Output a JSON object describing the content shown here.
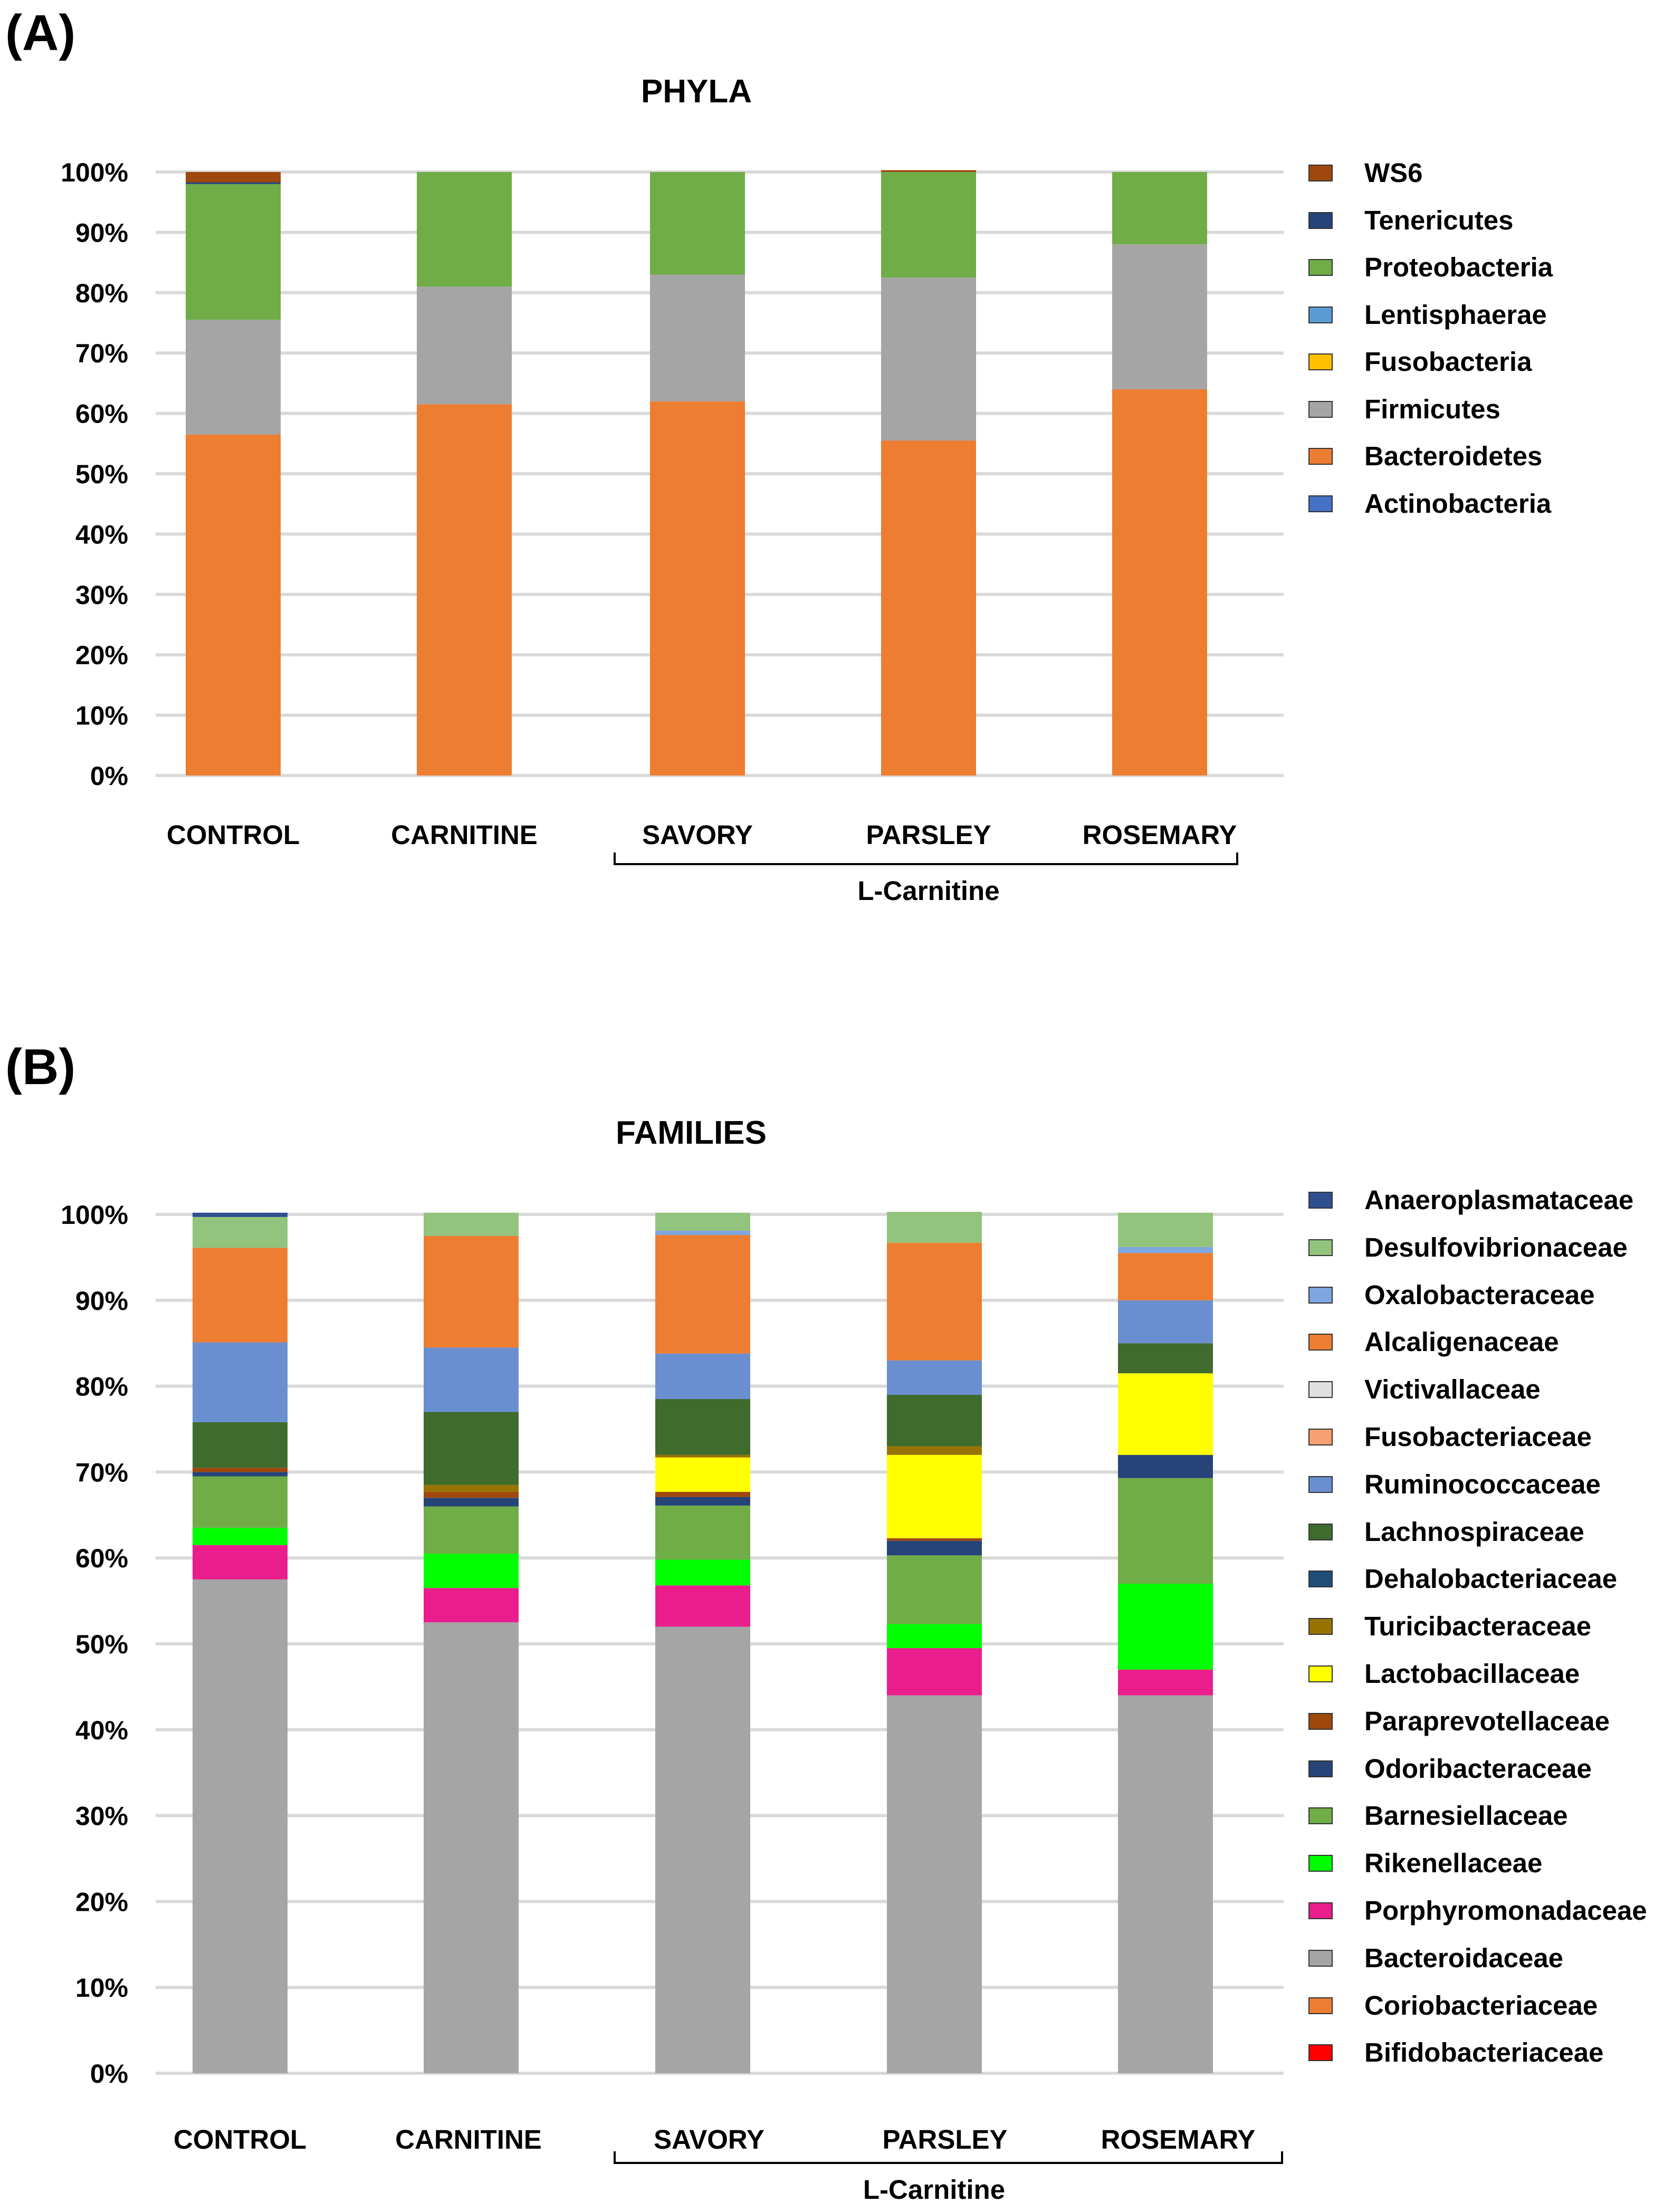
{
  "panel_a": {
    "label": "(A)",
    "chart_data": {
      "type": "bar",
      "stacked": true,
      "title": "PHYLA",
      "categories": [
        "CONTROL",
        "CARNITINE",
        "SAVORY",
        "PARSLEY",
        "ROSEMARY"
      ],
      "group_label": "L-Carnitine",
      "group_members": [
        "SAVORY",
        "PARSLEY",
        "ROSEMARY"
      ],
      "yticks": [
        "0%",
        "10%",
        "20%",
        "30%",
        "40%",
        "50%",
        "60%",
        "70%",
        "80%",
        "90%",
        "100%"
      ],
      "ylim": [
        0,
        100
      ],
      "legend_order": [
        "WS6",
        "Tenericutes",
        "Proteobacteria",
        "Lentisphaerae",
        "Fusobacteria",
        "Firmicutes",
        "Bacteroidetes",
        "Actinobacteria"
      ],
      "series": [
        {
          "name": "Actinobacteria",
          "color": "#4472C4",
          "values": [
            0,
            0,
            0,
            0,
            0
          ]
        },
        {
          "name": "Bacteroidetes",
          "color": "#ED7D31",
          "values": [
            56.5,
            61.5,
            62,
            55.5,
            64
          ]
        },
        {
          "name": "Firmicutes",
          "color": "#A5A5A5",
          "values": [
            19,
            19.5,
            21,
            27,
            24
          ]
        },
        {
          "name": "Fusobacteria",
          "color": "#FFC000",
          "values": [
            0,
            0,
            0,
            0,
            0
          ]
        },
        {
          "name": "Lentisphaerae",
          "color": "#5B9BD5",
          "values": [
            0,
            0,
            0,
            0,
            0
          ]
        },
        {
          "name": "Proteobacteria",
          "color": "#70AD47",
          "values": [
            22.5,
            19,
            17,
            17.5,
            12
          ]
        },
        {
          "name": "Tenericutes",
          "color": "#264478",
          "values": [
            0.3,
            0,
            0,
            0,
            0
          ]
        },
        {
          "name": "WS6",
          "color": "#9E480E",
          "values": [
            1.7,
            0,
            0,
            0.3,
            0
          ]
        }
      ]
    }
  },
  "panel_b": {
    "label": "(B)",
    "chart_data": {
      "type": "bar",
      "stacked": true,
      "title": "FAMILIES",
      "categories": [
        "CONTROL",
        "CARNITINE",
        "SAVORY",
        "PARSLEY",
        "ROSEMARY"
      ],
      "group_label": "L-Carnitine",
      "group_members": [
        "SAVORY",
        "PARSLEY",
        "ROSEMARY"
      ],
      "yticks": [
        "0%",
        "10%",
        "20%",
        "30%",
        "40%",
        "50%",
        "60%",
        "70%",
        "80%",
        "90%",
        "100%"
      ],
      "ylim": [
        0,
        100
      ],
      "legend_order": [
        "Anaeroplasmataceae",
        "Desulfovibrionaceae",
        "Oxalobacteraceae",
        "Alcaligenaceae",
        "Victivallaceae",
        "Fusobacteriaceae",
        "Ruminococcaceae",
        "Lachnospiraceae",
        "Dehalobacteriaceae",
        "Turicibacteraceae",
        "Lactobacillaceae",
        "Paraprevotellaceae",
        "Odoribacteraceae",
        "Barnesiellaceae",
        "Rikenellaceae",
        "Porphyromonadaceae",
        "Bacteroidaceae",
        "Coriobacteriaceae",
        "Bifidobacteriaceae"
      ],
      "series": [
        {
          "name": "Bifidobacteriaceae",
          "color": "#FF0000",
          "values": [
            0,
            0,
            0,
            0,
            0
          ]
        },
        {
          "name": "Coriobacteriaceae",
          "color": "#ED7D31",
          "values": [
            0,
            0,
            0,
            0,
            0
          ]
        },
        {
          "name": "Bacteroidaceae",
          "color": "#A5A5A5",
          "values": [
            57.5,
            52.5,
            52,
            44,
            44
          ]
        },
        {
          "name": "Porphyromonadaceae",
          "color": "#E91E8C",
          "values": [
            4,
            4,
            4.8,
            5.5,
            3
          ]
        },
        {
          "name": "Rikenellaceae",
          "color": "#00FF00",
          "values": [
            2,
            4,
            3,
            2.8,
            10
          ]
        },
        {
          "name": "Barnesiellaceae",
          "color": "#70AD47",
          "values": [
            6,
            5.5,
            6.3,
            8,
            12.3
          ]
        },
        {
          "name": "Odoribacteraceae",
          "color": "#264478",
          "values": [
            0.5,
            1,
            1,
            1.7,
            2.7
          ]
        },
        {
          "name": "Paraprevotellaceae",
          "color": "#9E480E",
          "values": [
            0.5,
            0.7,
            0.6,
            0.3,
            0
          ]
        },
        {
          "name": "Lactobacillaceae",
          "color": "#FFFF00",
          "values": [
            0,
            0,
            4,
            9.7,
            9.5
          ]
        },
        {
          "name": "Turicibacteraceae",
          "color": "#997300",
          "values": [
            0,
            0.8,
            0.3,
            1,
            0
          ]
        },
        {
          "name": "Dehalobacteriaceae",
          "color": "#1F4E79",
          "values": [
            0,
            0,
            0,
            0,
            0
          ]
        },
        {
          "name": "Lachnospiraceae",
          "color": "#3F6B2C",
          "values": [
            5.3,
            8.5,
            6.5,
            6,
            3.5
          ]
        },
        {
          "name": "Ruminococcaceae",
          "color": "#6A8FD1",
          "values": [
            9.3,
            7.5,
            5.3,
            4,
            5
          ]
        },
        {
          "name": "Fusobacteriaceae",
          "color": "#F4A070",
          "values": [
            0,
            0,
            0,
            0,
            0
          ]
        },
        {
          "name": "Victivallaceae",
          "color": "#E0E0E0",
          "values": [
            0,
            0,
            0,
            0,
            0
          ]
        },
        {
          "name": "Alcaligenaceae",
          "color": "#ED7D31",
          "values": [
            11,
            13,
            13.8,
            13.7,
            5.5
          ]
        },
        {
          "name": "Oxalobacteraceae",
          "color": "#7EA6E0",
          "values": [
            0,
            0,
            0.5,
            0,
            0.7
          ]
        },
        {
          "name": "Desulfovibrionaceae",
          "color": "#93C47D",
          "values": [
            3.6,
            2.7,
            2.1,
            3.6,
            4
          ]
        },
        {
          "name": "Anaeroplasmataceae",
          "color": "#2F4F8F",
          "values": [
            0.5,
            0,
            0,
            0,
            0
          ]
        }
      ]
    }
  }
}
